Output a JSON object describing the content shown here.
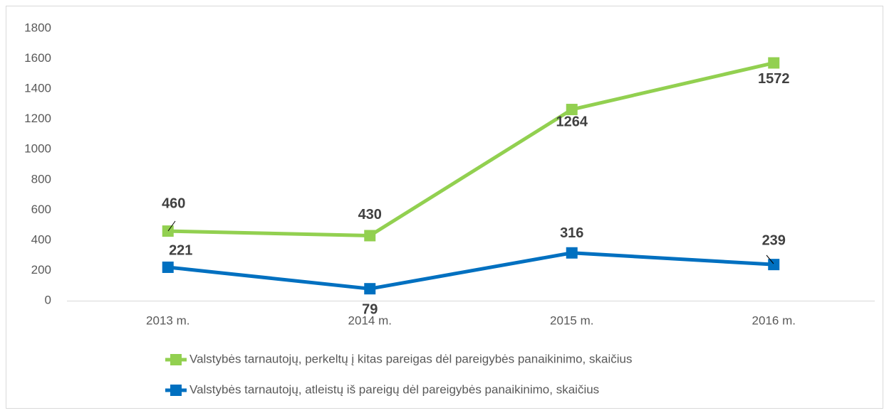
{
  "chart_data": {
    "type": "line",
    "categories": [
      "2013 m.",
      "2014 m.",
      "2015 m.",
      "2016 m."
    ],
    "series": [
      {
        "name": "Valstybės tarnautojų, perkeltų į kitas pareigas dėl pareigybės panaikinimo, skaičius",
        "color": "#92d050",
        "values": [
          460,
          430,
          1264,
          1572
        ]
      },
      {
        "name": "Valstybės tarnautojų, atleistų iš pareigų dėl pareigybės panaikinimo, skaičius",
        "color": "#0070c0",
        "values": [
          221,
          79,
          316,
          239
        ]
      }
    ],
    "ylim": [
      0,
      1800
    ],
    "yticks": [
      0,
      200,
      400,
      600,
      800,
      1000,
      1200,
      1400,
      1600,
      1800
    ],
    "grid": false,
    "legend": "bottom"
  }
}
